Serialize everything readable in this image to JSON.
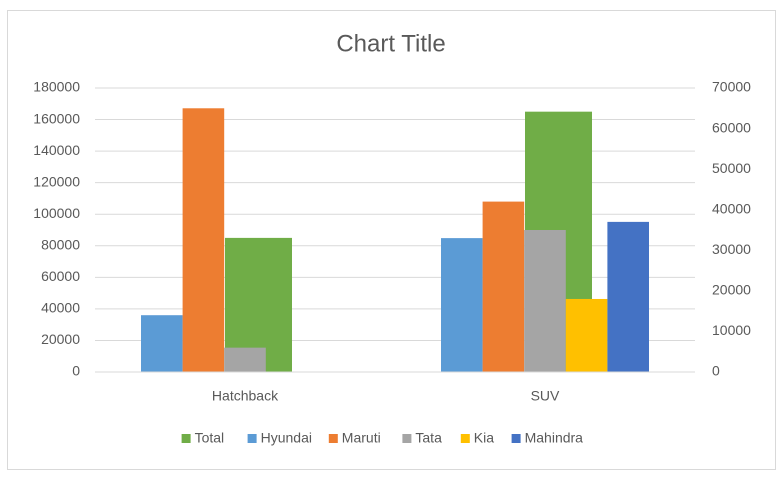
{
  "chart_data": {
    "type": "bar",
    "title": "Chart Title",
    "categories": [
      "Hatchback",
      "SUV"
    ],
    "series": [
      {
        "name": "Total",
        "color": "#70ad47",
        "values": [
          85000,
          165000
        ],
        "axis": "y"
      },
      {
        "name": "Hyundai",
        "color": "#5b9bd5",
        "values": [
          14000,
          33000
        ],
        "axis": "y2"
      },
      {
        "name": "Maruti",
        "color": "#ed7d31",
        "values": [
          65000,
          42000
        ],
        "axis": "y2"
      },
      {
        "name": "Tata",
        "color": "#a5a5a5",
        "values": [
          6000,
          35000
        ],
        "axis": "y2"
      },
      {
        "name": "Kia",
        "color": "#ffc000",
        "values": [
          null,
          18000
        ],
        "axis": "y2"
      },
      {
        "name": "Mahindra",
        "color": "#4472c4",
        "values": [
          null,
          37000
        ],
        "axis": "y2"
      }
    ],
    "ylim": [
      0,
      180000
    ],
    "yticks": [
      0,
      20000,
      40000,
      60000,
      80000,
      100000,
      120000,
      140000,
      160000,
      180000
    ],
    "y2lim": [
      0,
      70000
    ],
    "y2ticks": [
      0,
      10000,
      20000,
      30000,
      40000,
      50000,
      60000,
      70000
    ],
    "grid": true,
    "legend": "bottom"
  }
}
